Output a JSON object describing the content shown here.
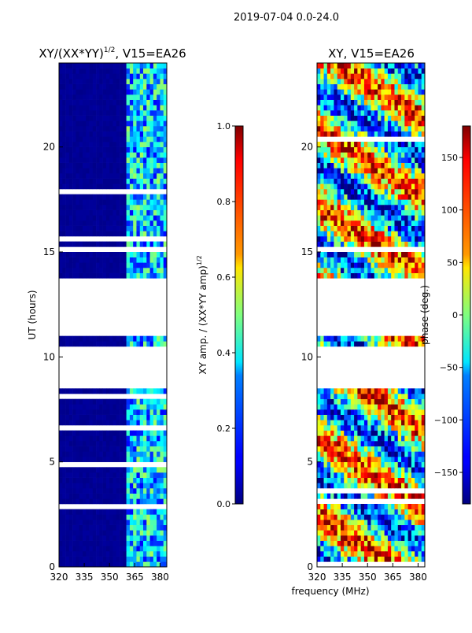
{
  "suptitle": "2019-07-04 0.0-24.0",
  "chart_data": [
    {
      "type": "heatmap",
      "id": "amp",
      "title": "XY/(XX*YY)",
      "title_sup": "1/2",
      "title_suffix": ", V15=EA26",
      "xlabel": "",
      "ylabel": "UT (hours)",
      "xlim": [
        320,
        384
      ],
      "ylim": [
        0,
        24
      ],
      "xticks": [
        320,
        335,
        350,
        365,
        380
      ],
      "yticks": [
        0,
        5,
        10,
        15,
        20
      ],
      "colormap": "jet",
      "colorbar": {
        "label": "XY amp. / (XX*YY amp)",
        "label_sup": "1/2",
        "range": [
          0.0,
          1.0
        ],
        "ticks": [
          0.0,
          0.2,
          0.4,
          0.6,
          0.8,
          1.0
        ],
        "tick_labels": [
          "0.0",
          "0.2",
          "0.4",
          "0.6",
          "0.8",
          "1.0"
        ]
      },
      "data_gaps_ut": [
        [
          8.5,
          10.4
        ],
        [
          11.1,
          13.8
        ],
        [
          15.0,
          15.3
        ]
      ],
      "bright_band_mhz": [
        360,
        384
      ],
      "typical_values": {
        "below_360_mhz": 0.02,
        "above_360_mhz": 0.3
      }
    },
    {
      "type": "heatmap",
      "id": "phase",
      "title": "XY, V15=EA26",
      "xlabel": "frequency (MHz)",
      "ylabel": "",
      "xlim": [
        320,
        384
      ],
      "ylim": [
        0,
        24
      ],
      "xticks": [
        320,
        335,
        350,
        365,
        380
      ],
      "yticks": [
        0,
        5,
        10,
        15,
        20
      ],
      "colormap": "jet",
      "colorbar": {
        "label": "phase (deg.)",
        "range": [
          -180,
          180
        ],
        "ticks": [
          -150,
          -100,
          -50,
          0,
          50,
          100,
          150
        ],
        "tick_labels": [
          "−150",
          "−100",
          "−50",
          "0",
          "50",
          "100",
          "150"
        ]
      },
      "data_gaps_ut": [
        [
          8.5,
          10.4
        ],
        [
          11.1,
          13.8
        ],
        [
          15.0,
          15.3
        ]
      ],
      "typical_values": {
        "range_deg": [
          -180,
          180
        ]
      }
    }
  ]
}
